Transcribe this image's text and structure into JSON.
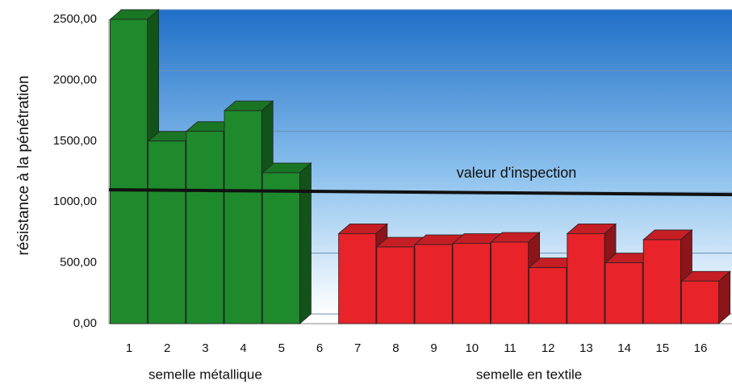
{
  "chart_data": {
    "type": "bar3d",
    "y_label": "résistance à la pénétration",
    "categories": [
      1,
      2,
      3,
      4,
      5,
      6,
      7,
      8,
      9,
      10,
      11,
      12,
      13,
      14,
      15,
      16
    ],
    "series": [
      {
        "name": "semelle métallique",
        "color": "#1e8a2c",
        "values": [
          2500,
          1500,
          1580,
          1750,
          1240,
          null,
          null,
          null,
          null,
          null,
          null,
          null,
          null,
          null,
          null,
          null
        ]
      },
      {
        "name": "semelle en textile",
        "color": "#e8232a",
        "values": [
          null,
          null,
          null,
          null,
          null,
          null,
          740,
          630,
          650,
          660,
          670,
          460,
          740,
          500,
          690,
          350
        ]
      }
    ],
    "ylim": [
      0,
      2500
    ],
    "yticks": [
      {
        "value": 0,
        "label": "0,00"
      },
      {
        "value": 500,
        "label": "500,00"
      },
      {
        "value": 1000,
        "label": "1000,00"
      },
      {
        "value": 1500,
        "label": "1500,00"
      },
      {
        "value": 2000,
        "label": "2000,00"
      },
      {
        "value": 2500,
        "label": "2500,00"
      }
    ],
    "grid": true,
    "reference_line": {
      "label": "valeur d'inspection",
      "value": 1100
    }
  }
}
